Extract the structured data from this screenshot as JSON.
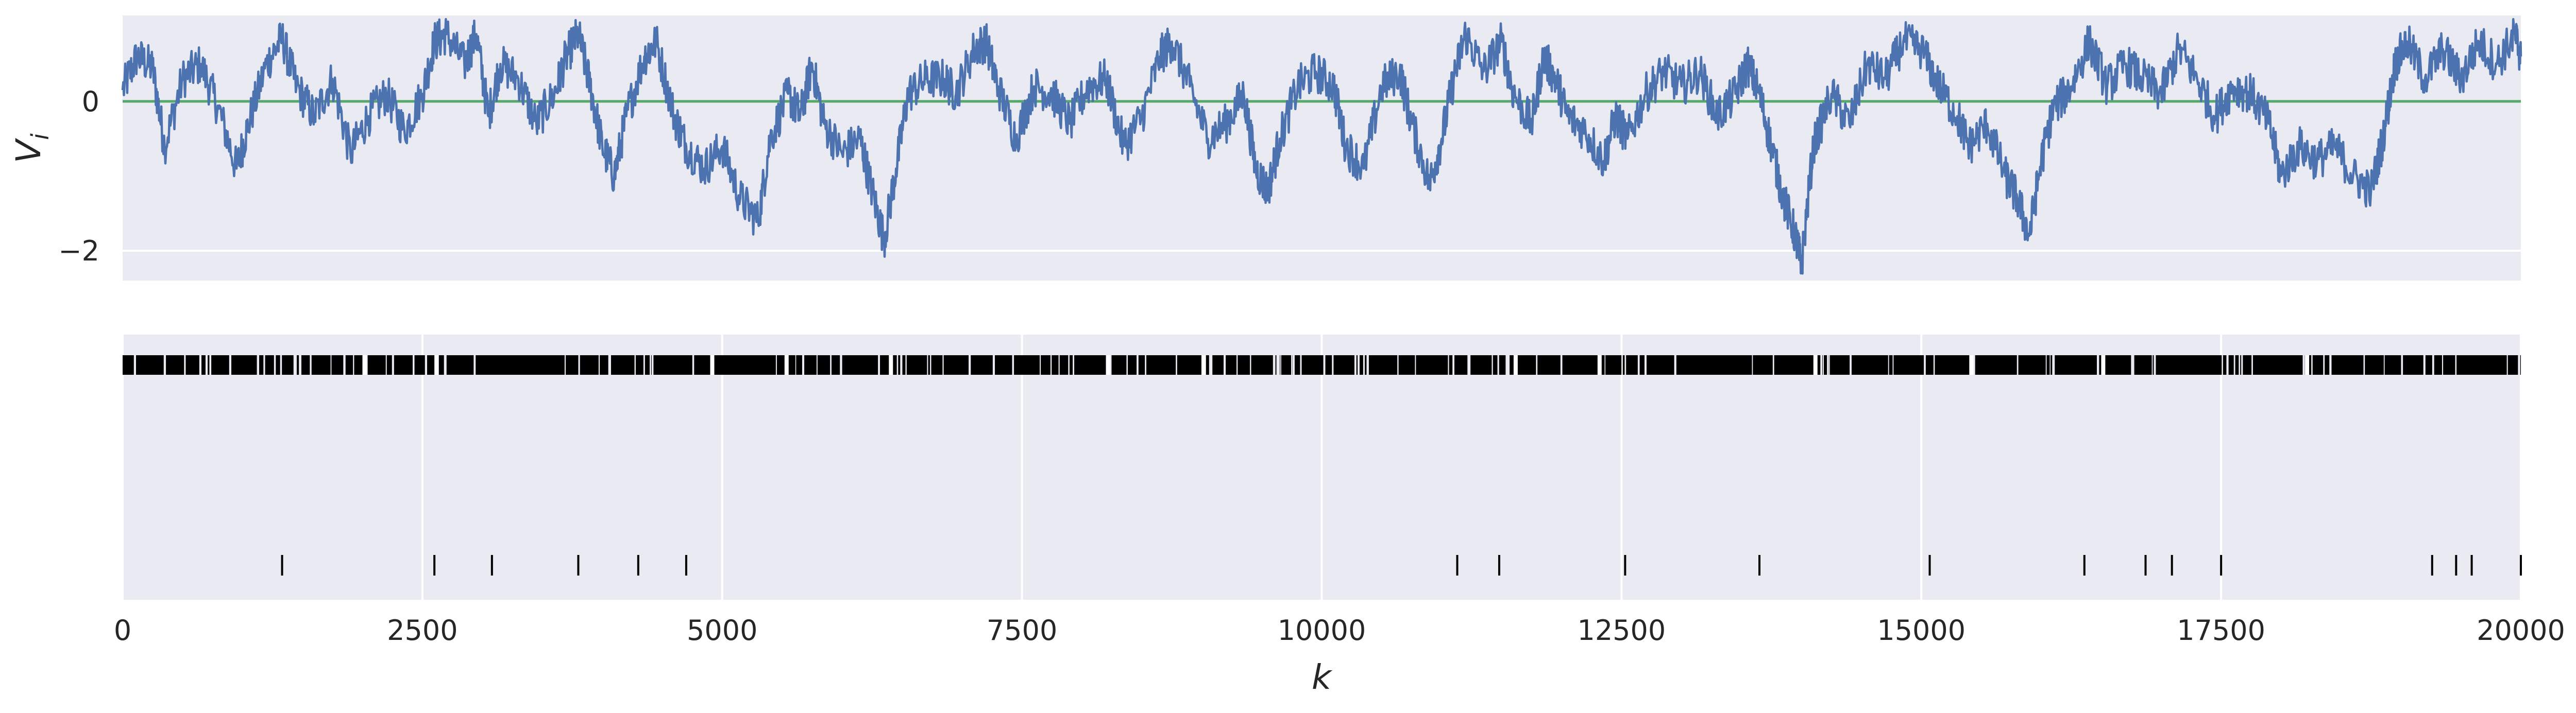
{
  "colors": {
    "axes_bg": "#eaeaf2",
    "grid": "#ffffff",
    "series": "#4c72b0",
    "zero_line": "#55a868",
    "raster": "#000000",
    "text": "#262626"
  },
  "chart_data": [
    {
      "type": "line",
      "title": "",
      "xlabel": "",
      "ylabel": "V_i",
      "ylabel_base": "V",
      "ylabel_sub": "i",
      "xlim": [
        0,
        20000
      ],
      "ylim": [
        -2.4,
        1.15
      ],
      "yticks": [
        0,
        -2
      ],
      "ytick_labels": [
        "0",
        "−2"
      ],
      "xticks_hidden": true,
      "grid": true,
      "reference_line": {
        "y": 0,
        "color": "#55a868"
      },
      "series": [
        {
          "color": "#4c72b0",
          "description_points": [
            [
              0,
              0.15
            ],
            [
              120,
              0.6
            ],
            [
              250,
              0.45
            ],
            [
              350,
              -0.6
            ],
            [
              500,
              0.3
            ],
            [
              650,
              0.5
            ],
            [
              800,
              -0.1
            ],
            [
              950,
              -0.9
            ],
            [
              1050,
              -0.3
            ],
            [
              1200,
              0.5
            ],
            [
              1330,
              0.85
            ],
            [
              1450,
              0.2
            ],
            [
              1600,
              -0.2
            ],
            [
              1750,
              0.3
            ],
            [
              1900,
              -0.7
            ],
            [
              2050,
              -0.2
            ],
            [
              2200,
              0.1
            ],
            [
              2350,
              -0.4
            ],
            [
              2500,
              0.1
            ],
            [
              2600,
              0.8
            ],
            [
              2700,
              0.9
            ],
            [
              2850,
              0.5
            ],
            [
              2950,
              0.9
            ],
            [
              3050,
              -0.2
            ],
            [
              3150,
              0.5
            ],
            [
              3300,
              0.3
            ],
            [
              3450,
              -0.3
            ],
            [
              3600,
              0.1
            ],
            [
              3700,
              0.6
            ],
            [
              3800,
              0.9
            ],
            [
              3900,
              0.2
            ],
            [
              4000,
              -0.6
            ],
            [
              4100,
              -1.0
            ],
            [
              4200,
              -0.2
            ],
            [
              4350,
              0.6
            ],
            [
              4450,
              0.8
            ],
            [
              4600,
              -0.2
            ],
            [
              4700,
              -0.6
            ],
            [
              4850,
              -0.9
            ],
            [
              5000,
              -0.6
            ],
            [
              5150,
              -1.3
            ],
            [
              5300,
              -1.6
            ],
            [
              5400,
              -0.5
            ],
            [
              5550,
              0.1
            ],
            [
              5650,
              -0.2
            ],
            [
              5750,
              0.5
            ],
            [
              5850,
              -0.3
            ],
            [
              6000,
              -0.7
            ],
            [
              6150,
              -0.5
            ],
            [
              6250,
              -1.2
            ],
            [
              6350,
              -1.85
            ],
            [
              6450,
              -0.9
            ],
            [
              6550,
              0.1
            ],
            [
              6700,
              0.3
            ],
            [
              6850,
              0.3
            ],
            [
              6950,
              0.1
            ],
            [
              7100,
              0.7
            ],
            [
              7200,
              0.8
            ],
            [
              7300,
              0.2
            ],
            [
              7450,
              -0.5
            ],
            [
              7600,
              0.2
            ],
            [
              7750,
              0.1
            ],
            [
              7900,
              -0.3
            ],
            [
              8050,
              0.2
            ],
            [
              8200,
              0.3
            ],
            [
              8350,
              -0.6
            ],
            [
              8500,
              -0.2
            ],
            [
              8650,
              0.6
            ],
            [
              8750,
              0.8
            ],
            [
              8900,
              0.2
            ],
            [
              9050,
              -0.5
            ],
            [
              9200,
              -0.3
            ],
            [
              9350,
              0.1
            ],
            [
              9450,
              -0.9
            ],
            [
              9550,
              -1.2
            ],
            [
              9650,
              -0.5
            ],
            [
              9800,
              0.2
            ],
            [
              9950,
              0.4
            ],
            [
              10100,
              0.2
            ],
            [
              10200,
              -0.6
            ],
            [
              10350,
              -0.9
            ],
            [
              10500,
              0.2
            ],
            [
              10650,
              0.4
            ],
            [
              10750,
              -0.3
            ],
            [
              10900,
              -1.1
            ],
            [
              11000,
              -0.5
            ],
            [
              11100,
              0.3
            ],
            [
              11200,
              0.9
            ],
            [
              11350,
              0.4
            ],
            [
              11500,
              0.8
            ],
            [
              11600,
              0.1
            ],
            [
              11750,
              -0.3
            ],
            [
              11850,
              0.6
            ],
            [
              11950,
              0.3
            ],
            [
              12050,
              -0.2
            ],
            [
              12200,
              -0.4
            ],
            [
              12350,
              -0.8
            ],
            [
              12450,
              -0.2
            ],
            [
              12550,
              -0.5
            ],
            [
              12700,
              0.1
            ],
            [
              12850,
              0.4
            ],
            [
              13000,
              0.2
            ],
            [
              13150,
              0.4
            ],
            [
              13300,
              -0.2
            ],
            [
              13450,
              0.1
            ],
            [
              13550,
              0.5
            ],
            [
              13650,
              0.1
            ],
            [
              13750,
              -0.6
            ],
            [
              13850,
              -1.3
            ],
            [
              13950,
              -1.8
            ],
            [
              14000,
              -2.2
            ],
            [
              14100,
              -0.6
            ],
            [
              14250,
              0.1
            ],
            [
              14400,
              -0.3
            ],
            [
              14550,
              0.5
            ],
            [
              14700,
              0.3
            ],
            [
              14850,
              0.8
            ],
            [
              15000,
              0.7
            ],
            [
              15150,
              0.2
            ],
            [
              15300,
              -0.2
            ],
            [
              15400,
              -0.6
            ],
            [
              15550,
              -0.3
            ],
            [
              15700,
              -1.0
            ],
            [
              15800,
              -1.3
            ],
            [
              15900,
              -1.8
            ],
            [
              16000,
              -0.8
            ],
            [
              16100,
              -0.1
            ],
            [
              16250,
              0.2
            ],
            [
              16400,
              0.8
            ],
            [
              16550,
              0.2
            ],
            [
              16700,
              0.5
            ],
            [
              16850,
              0.3
            ],
            [
              17000,
              0.1
            ],
            [
              17150,
              0.7
            ],
            [
              17300,
              0.3
            ],
            [
              17450,
              -0.2
            ],
            [
              17600,
              0.2
            ],
            [
              17750,
              0.1
            ],
            [
              17900,
              -0.3
            ],
            [
              18000,
              -1.0
            ],
            [
              18150,
              -0.6
            ],
            [
              18300,
              -0.8
            ],
            [
              18450,
              -0.6
            ],
            [
              18600,
              -1.0
            ],
            [
              18750,
              -1.2
            ],
            [
              18850,
              -0.5
            ],
            [
              18950,
              0.5
            ],
            [
              19050,
              0.8
            ],
            [
              19200,
              0.3
            ],
            [
              19350,
              0.7
            ],
            [
              19500,
              0.3
            ],
            [
              19650,
              0.8
            ],
            [
              19800,
              0.5
            ],
            [
              19950,
              0.9
            ],
            [
              20000,
              0.6
            ]
          ]
        }
      ]
    },
    {
      "type": "scatter",
      "subtype": "event-raster",
      "title": "",
      "xlabel": "k",
      "ylabel": "",
      "xlim": [
        0,
        20000
      ],
      "xticks": [
        0,
        2500,
        5000,
        7500,
        10000,
        12500,
        15000,
        17500,
        20000
      ],
      "xtick_labels": [
        "0",
        "2500",
        "5000",
        "7500",
        "10000",
        "12500",
        "15000",
        "17500",
        "20000"
      ],
      "grid": true,
      "rows": [
        {
          "name": "",
          "dense": true,
          "range": [
            0,
            20000
          ],
          "gap_starts": [
            6390,
            4900,
            5520,
            2000,
            2600,
            8200,
            9000,
            11600,
            12300,
            14100,
            15400,
            16500,
            18200
          ]
        },
        {
          "name": "",
          "events": [
            1330,
            2600,
            3080,
            3800,
            4300,
            4700,
            11130,
            11480,
            12530,
            13650,
            15070,
            16360,
            16870,
            17090,
            17500,
            19260,
            19460,
            19590,
            20000
          ]
        }
      ]
    }
  ]
}
